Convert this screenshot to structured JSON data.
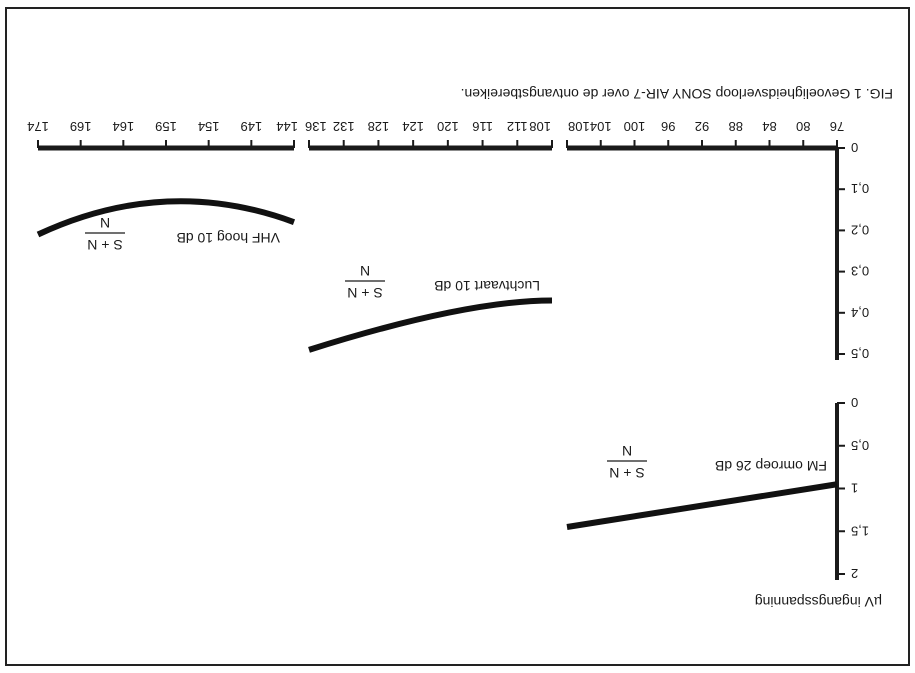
{
  "chart_data": {
    "type": "line",
    "title": "FIG. 1 Gevoeligheidsverloop SONY AIR-7 over de ontvangstbereiken.",
    "ylabel": "µV ingangsspanning",
    "xlabel": "",
    "orientation": "rotated 180°",
    "grid": false,
    "x_bands": [
      {
        "name": "FM",
        "ticks": [
          76,
          80,
          84,
          88,
          92,
          96,
          100,
          104,
          108
        ]
      },
      {
        "name": "Luchtvaart",
        "ticks": [
          108,
          112,
          116,
          120,
          124,
          128,
          132,
          136
        ]
      },
      {
        "name": "VHF hoog",
        "ticks": [
          144,
          149,
          154,
          159,
          164,
          169,
          174
        ]
      }
    ],
    "y_axes": [
      {
        "name": "FM",
        "ticks": [
          "0",
          "0,5",
          "1",
          "1,5",
          "2"
        ],
        "ylim": [
          0,
          2
        ]
      },
      {
        "name": "Luchtvaart / VHF hoog",
        "ticks": [
          "0",
          "0,1",
          "0,2",
          "0,3",
          "0,4",
          "0,5"
        ],
        "ylim": [
          0,
          0.5
        ]
      }
    ],
    "series": [
      {
        "name": "FM omroep 26 dB",
        "unit_label": "S + N / N",
        "x": [
          76,
          108
        ],
        "y": [
          0.95,
          1.45
        ]
      },
      {
        "name": "Luchtvaart 10 dB",
        "unit_label": "S + N / N",
        "x": [
          108,
          120,
          136
        ],
        "y": [
          0.37,
          0.4,
          0.49
        ]
      },
      {
        "name": "VHF hoog 10 dB",
        "unit_label": "S + N / N",
        "x": [
          144,
          159,
          174
        ],
        "y": [
          0.18,
          0.13,
          0.21
        ]
      }
    ]
  }
}
